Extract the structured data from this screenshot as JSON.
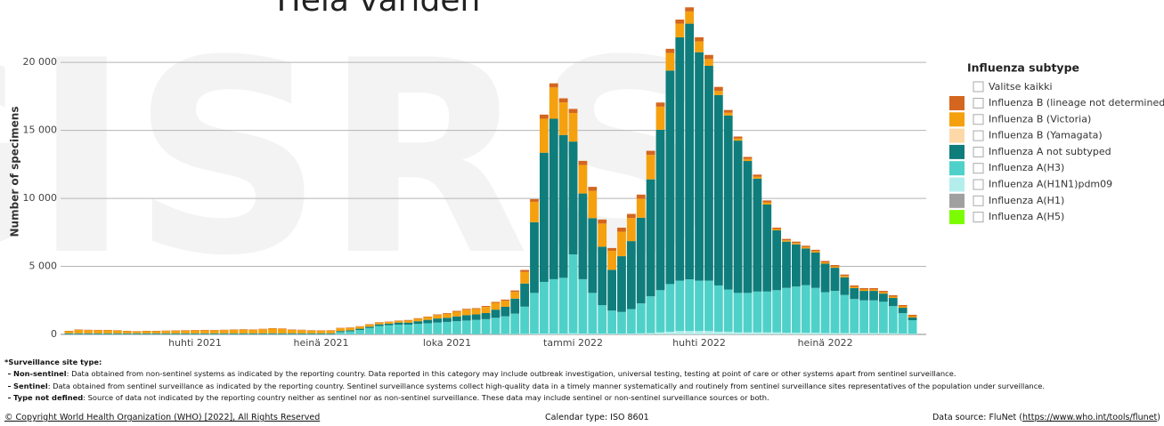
{
  "chart_data": {
    "type": "stacked-bar",
    "title": "Hela världen",
    "watermark": "GISRS",
    "y_label": "Number of specimens",
    "legend_title": "Influenza subtype",
    "legend_select_all": "Valitse kaikki",
    "ylim": [
      0,
      24000
    ],
    "yticks": [
      0,
      {
        "value": 5000,
        "label": "5 000"
      },
      {
        "value": 10000,
        "label": "10 000"
      },
      {
        "value": 15000,
        "label": "15 000"
      },
      {
        "value": 20000,
        "label": "20 000"
      }
    ],
    "grid": true,
    "categories": [
      null,
      null,
      null,
      null,
      null,
      null,
      null,
      null,
      null,
      null,
      null,
      null,
      null,
      "huhti 2021",
      null,
      null,
      null,
      null,
      null,
      null,
      null,
      null,
      null,
      null,
      null,
      null,
      "heinä 2021",
      null,
      null,
      null,
      null,
      null,
      null,
      null,
      null,
      null,
      null,
      null,
      null,
      "loka 2021",
      null,
      null,
      null,
      null,
      null,
      null,
      null,
      null,
      null,
      null,
      null,
      null,
      "tammi 2022",
      null,
      null,
      null,
      null,
      null,
      null,
      null,
      null,
      null,
      null,
      null,
      null,
      "huhti 2022",
      null,
      null,
      null,
      null,
      null,
      null,
      null,
      null,
      null,
      null,
      null,
      null,
      "heinä 2022",
      null,
      null,
      null,
      null,
      null,
      null,
      null,
      null,
      null
    ],
    "series": [
      {
        "name": "Influenza B (lineage not determined)",
        "color": "#d4661f",
        "values": [
          30,
          30,
          30,
          30,
          30,
          30,
          30,
          30,
          30,
          30,
          30,
          30,
          30,
          30,
          30,
          30,
          30,
          30,
          30,
          30,
          30,
          30,
          30,
          30,
          30,
          30,
          30,
          30,
          30,
          30,
          30,
          30,
          30,
          30,
          30,
          40,
          40,
          40,
          50,
          50,
          60,
          60,
          60,
          70,
          70,
          80,
          100,
          150,
          200,
          300,
          300,
          300,
          300,
          300,
          300,
          300,
          200,
          300,
          300,
          300,
          300,
          300,
          300,
          300,
          300,
          300,
          300,
          300,
          200,
          150,
          150,
          150,
          150,
          100,
          100,
          100,
          100,
          100,
          100,
          100,
          100,
          100,
          100,
          100,
          100,
          100,
          100,
          100
        ]
      },
      {
        "name": "Influenza B (Victoria)",
        "color": "#f5a10f",
        "values": [
          150,
          250,
          230,
          220,
          220,
          200,
          150,
          130,
          150,
          150,
          170,
          180,
          200,
          210,
          220,
          210,
          230,
          250,
          270,
          250,
          300,
          350,
          330,
          250,
          230,
          200,
          190,
          200,
          200,
          180,
          150,
          150,
          130,
          120,
          120,
          150,
          180,
          200,
          250,
          300,
          350,
          400,
          400,
          450,
          500,
          450,
          500,
          850,
          1500,
          2500,
          2300,
          2400,
          2100,
          2100,
          2000,
          1700,
          1400,
          1800,
          1700,
          1400,
          1800,
          1700,
          1300,
          1000,
          900,
          800,
          500,
          300,
          200,
          150,
          150,
          150,
          150,
          100,
          100,
          100,
          100,
          100,
          100,
          100,
          100,
          100,
          100,
          100,
          100,
          100,
          100,
          100
        ]
      },
      {
        "name": "Influenza B (Yamagata)",
        "color": "#fdd9a8",
        "values": [
          0,
          0,
          0,
          0,
          0,
          0,
          0,
          0,
          0,
          0,
          0,
          0,
          0,
          0,
          0,
          0,
          0,
          0,
          0,
          0,
          0,
          0,
          0,
          0,
          0,
          0,
          0,
          0,
          0,
          0,
          0,
          0,
          0,
          0,
          0,
          0,
          0,
          0,
          0,
          0,
          0,
          0,
          0,
          0,
          0,
          0,
          0,
          0,
          0,
          0,
          0,
          0,
          0,
          0,
          0,
          0,
          0,
          0,
          0,
          0,
          0,
          0,
          0,
          0,
          0,
          0,
          0,
          0,
          0,
          0,
          0,
          0,
          0,
          0,
          0,
          0,
          0,
          0,
          0,
          0,
          0,
          0,
          0,
          0,
          0,
          0,
          0,
          0
        ]
      },
      {
        "name": "Influenza A not subtyped",
        "color": "#0f7d7b",
        "values": [
          50,
          50,
          50,
          50,
          50,
          50,
          50,
          50,
          50,
          50,
          50,
          50,
          50,
          50,
          50,
          50,
          50,
          50,
          50,
          50,
          50,
          50,
          50,
          50,
          50,
          50,
          50,
          50,
          80,
          80,
          100,
          100,
          120,
          120,
          150,
          150,
          200,
          250,
          300,
          300,
          350,
          400,
          400,
          450,
          600,
          700,
          1100,
          1700,
          5200,
          9500,
          11800,
          10500,
          8300,
          6300,
          5500,
          4300,
          3000,
          4100,
          5000,
          6300,
          8600,
          11800,
          15700,
          17900,
          18800,
          16800,
          15800,
          14000,
          12800,
          11200,
          9700,
          8300,
          6400,
          4400,
          3400,
          3100,
          2700,
          2600,
          2100,
          1700,
          1300,
          800,
          700,
          700,
          600,
          600,
          400,
          200
        ]
      },
      {
        "name": "Influenza A(H3)",
        "color": "#4fd1c9",
        "values": [
          30,
          30,
          30,
          30,
          30,
          30,
          30,
          30,
          30,
          30,
          30,
          30,
          30,
          30,
          30,
          30,
          30,
          30,
          30,
          30,
          30,
          30,
          30,
          30,
          30,
          30,
          30,
          30,
          150,
          200,
          300,
          450,
          600,
          650,
          700,
          700,
          750,
          800,
          850,
          900,
          950,
          1000,
          1050,
          1100,
          1200,
          1300,
          1500,
          2000,
          3000,
          3800,
          4000,
          4100,
          5800,
          4000,
          3000,
          2100,
          1700,
          1600,
          1800,
          2200,
          2700,
          3100,
          3500,
          3700,
          3800,
          3700,
          3700,
          3400,
          3100,
          2900,
          2900,
          3000,
          3000,
          3100,
          3300,
          3400,
          3500,
          3300,
          3000,
          3100,
          2800,
          2500,
          2400,
          2400,
          2300,
          2000,
          1500,
          1000
        ]
      },
      {
        "name": "Influenza A(H1N1)pdm09",
        "color": "#b4eeec",
        "values": [
          0,
          0,
          0,
          0,
          0,
          0,
          0,
          0,
          0,
          0,
          0,
          0,
          0,
          0,
          0,
          0,
          0,
          0,
          0,
          0,
          0,
          0,
          0,
          0,
          0,
          0,
          0,
          0,
          20,
          20,
          20,
          20,
          20,
          20,
          20,
          20,
          20,
          20,
          20,
          20,
          20,
          20,
          20,
          20,
          20,
          30,
          30,
          40,
          50,
          60,
          60,
          60,
          80,
          60,
          50,
          50,
          50,
          50,
          60,
          80,
          100,
          150,
          200,
          250,
          250,
          250,
          250,
          200,
          200,
          150,
          150,
          150,
          150,
          150,
          120,
          120,
          120,
          120,
          100,
          100,
          100,
          100,
          100,
          100,
          100,
          80,
          60,
          40
        ]
      },
      {
        "name": "Influenza A(H1)",
        "color": "#a0a0a0",
        "values": [
          0,
          0,
          0,
          0,
          0,
          0,
          0,
          0,
          0,
          0,
          0,
          0,
          0,
          0,
          0,
          0,
          0,
          0,
          0,
          0,
          0,
          0,
          0,
          0,
          0,
          0,
          0,
          0,
          0,
          0,
          0,
          0,
          0,
          0,
          0,
          0,
          0,
          0,
          0,
          0,
          0,
          0,
          0,
          0,
          0,
          0,
          0,
          0,
          0,
          0,
          0,
          0,
          0,
          0,
          0,
          0,
          0,
          0,
          0,
          0,
          0,
          0,
          0,
          0,
          0,
          0,
          0,
          0,
          0,
          0,
          0,
          0,
          0,
          0,
          0,
          0,
          0,
          0,
          0,
          0,
          0,
          0,
          0,
          0,
          0,
          0,
          0,
          0
        ]
      },
      {
        "name": "Influenza A(H5)",
        "color": "#7cfc00",
        "values": [
          0,
          0,
          0,
          0,
          0,
          0,
          0,
          0,
          0,
          0,
          0,
          0,
          0,
          0,
          0,
          0,
          0,
          0,
          0,
          0,
          0,
          0,
          0,
          0,
          0,
          0,
          0,
          0,
          0,
          0,
          0,
          0,
          0,
          0,
          0,
          0,
          0,
          0,
          0,
          0,
          0,
          0,
          0,
          0,
          0,
          0,
          0,
          0,
          0,
          0,
          0,
          0,
          0,
          0,
          0,
          0,
          0,
          0,
          0,
          0,
          0,
          0,
          0,
          0,
          0,
          0,
          0,
          0,
          0,
          0,
          0,
          0,
          0,
          0,
          0,
          0,
          0,
          0,
          0,
          0,
          0,
          0,
          0,
          0,
          0,
          0,
          0,
          0
        ]
      }
    ]
  },
  "notes": {
    "heading": "*Surveillance site type:",
    "items": [
      {
        "term": "Non-sentinel",
        "text": ": Data obtained from non-sentinel systems as indicated by the reporting country. Data reported in this category may include outbreak investigation, universal testing, testing at point of care or other systems apart from sentinel surveillance."
      },
      {
        "term": "Sentinel",
        "text": ": Data obtained from sentinel surveillance as indicated by the reporting country. Sentinel surveillance systems collect high-quality data in a timely manner systematically and routinely from sentinel surveillance sites representatives of the population under surveillance."
      },
      {
        "term": "Type not defined",
        "text": ": Source of data not indicated by the reporting country neither as sentinel nor as non-sentinel surveillance. These data may include sentinel or non-sentinel surveillance sources or both."
      }
    ]
  },
  "footer": {
    "copyright": "© Copyright World Health Organization (WHO) [2022], All Rights Reserved",
    "calendar": "Calendar type: ISO 8601",
    "source_prefix": "Data source: FluNet (",
    "source_link": "https://www.who.int/tools/flunet",
    "source_suffix": ")"
  }
}
